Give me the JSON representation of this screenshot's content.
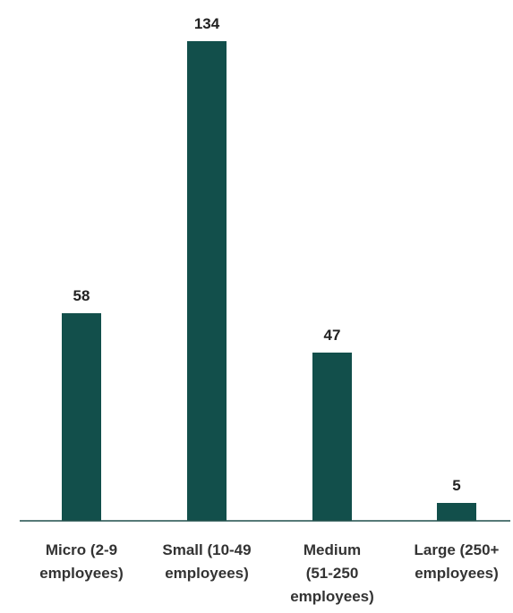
{
  "chart_data": {
    "type": "bar",
    "categories": [
      [
        "Micro (2-9",
        "employees)"
      ],
      [
        "Small (10-49",
        "employees)"
      ],
      [
        "Medium",
        "(51-250",
        "employees)"
      ],
      [
        "Large (250+",
        "employees)"
      ]
    ],
    "values": [
      58,
      134,
      47,
      5
    ],
    "bar_color": "#124f4b",
    "axis_color": "#1f4f4b",
    "data_labels": true,
    "grid": false,
    "title": "",
    "xlabel": "",
    "ylabel": ""
  }
}
